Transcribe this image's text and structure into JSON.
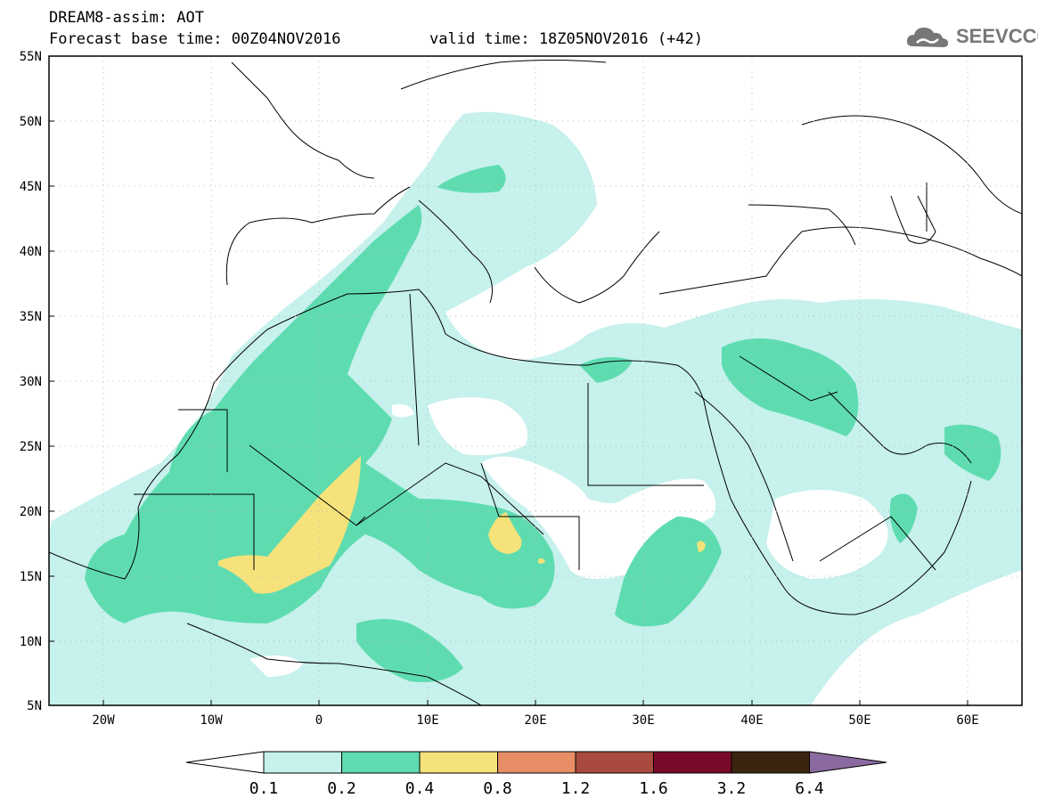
{
  "header": {
    "title_line1": "DREAM8-assim: AOT",
    "title_line2": "Forecast base time: 00Z04NOV2016",
    "valid_time": "valid time: 18Z05NOV2016 (+42)",
    "logo_text": "SEEVCCC"
  },
  "map": {
    "lat_labels": [
      "55N",
      "50N",
      "45N",
      "40N",
      "35N",
      "30N",
      "25N",
      "20N",
      "15N",
      "10N",
      "5N"
    ],
    "lon_labels": [
      "20W",
      "10W",
      "0",
      "10E",
      "20E",
      "30E",
      "40E",
      "50E",
      "60E"
    ],
    "lat_range": [
      5,
      55
    ],
    "lon_range": [
      -25,
      65
    ]
  },
  "colorbar": {
    "levels": [
      "0.1",
      "0.2",
      "0.4",
      "0.8",
      "1.2",
      "1.6",
      "3.2",
      "6.4"
    ],
    "colors": [
      "#ffffff",
      "#c6f1ec",
      "#5edcb0",
      "#f6e27a",
      "#e78e66",
      "#a94a3e",
      "#7a0a2a",
      "#3c2510",
      "#8a6aa0"
    ]
  }
}
